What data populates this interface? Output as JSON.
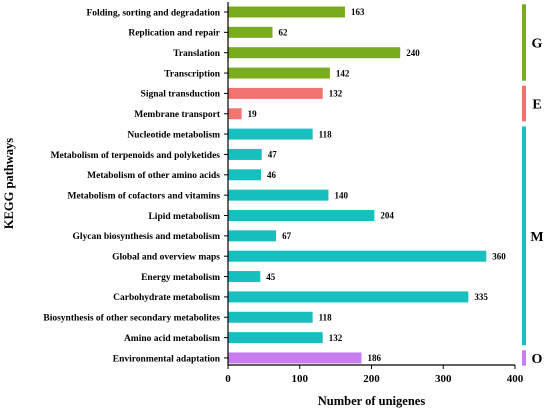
{
  "chart_data": {
    "type": "bar",
    "orientation": "horizontal",
    "title": "",
    "xlabel": "Number of unigenes",
    "ylabel": "KEGG pathways",
    "xlim": [
      0,
      400
    ],
    "xticks": [
      0,
      100,
      200,
      300,
      400
    ],
    "grid": false,
    "categories": [
      "Folding, sorting and degradation",
      "Replication and repair",
      "Translation",
      "Transcription",
      "Signal transduction",
      "Membrane transport",
      "Nucleotide metabolism",
      "Metabolism of terpenoids and polyketides",
      "Metabolism of other amino acids",
      "Metabolism of cofactors and vitamins",
      "Lipid metabolism",
      "Glycan biosynthesis and metabolism",
      "Global and overview maps",
      "Energy metabolism",
      "Carbohydrate metabolism",
      "Biosynthesis of other secondary metabolites",
      "Amino acid metabolism",
      "Environmental adaptation"
    ],
    "values": [
      163,
      62,
      240,
      142,
      132,
      19,
      118,
      47,
      46,
      140,
      204,
      67,
      360,
      45,
      335,
      118,
      132,
      186
    ],
    "groups": [
      {
        "label": "G",
        "color": "#7aad1e",
        "members": [
          "Folding, sorting and degradation",
          "Replication and repair",
          "Translation",
          "Transcription"
        ]
      },
      {
        "label": "E",
        "color": "#f07470",
        "members": [
          "Signal transduction",
          "Membrane transport"
        ]
      },
      {
        "label": "M",
        "color": "#18bfbf",
        "members": [
          "Nucleotide metabolism",
          "Metabolism of terpenoids and polyketides",
          "Metabolism of other amino acids",
          "Metabolism of cofactors and vitamins",
          "Lipid metabolism",
          "Glycan biosynthesis and metabolism",
          "Global and overview maps",
          "Energy metabolism",
          "Carbohydrate metabolism",
          "Biosynthesis of other secondary metabolites",
          "Amino acid metabolism"
        ]
      },
      {
        "label": "O",
        "color": "#c77cf2",
        "members": [
          "Environmental adaptation"
        ]
      }
    ]
  }
}
